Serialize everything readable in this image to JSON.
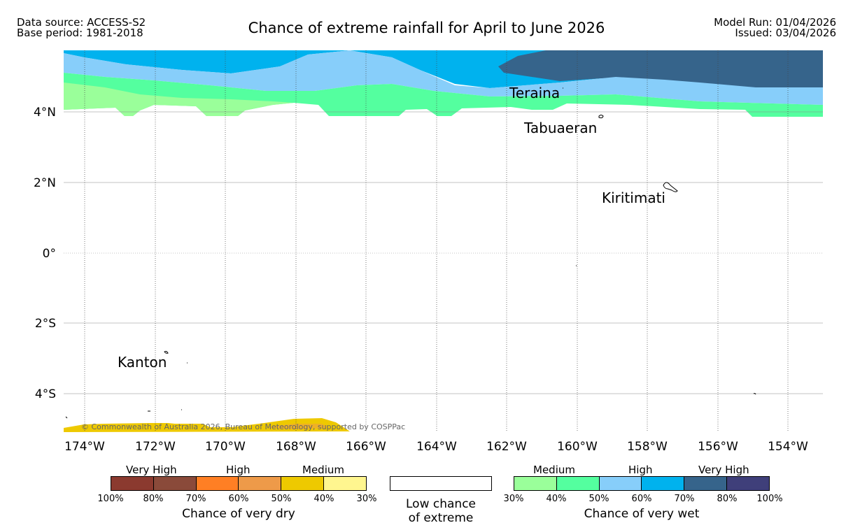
{
  "header": {
    "data_source": "Data source: ACCESS-S2",
    "base_period": "Base period: 1981-2018",
    "title": "Chance of extreme rainfall for April to June 2026",
    "model_run": "Model Run: 01/04/2026",
    "issued": "Issued: 03/04/2026"
  },
  "map": {
    "lat_labels": [
      "4°N",
      "2°N",
      "0°",
      "2°S",
      "4°S"
    ],
    "lon_labels": [
      "174°W",
      "172°W",
      "170°W",
      "168°W",
      "166°W",
      "164°W",
      "162°W",
      "160°W",
      "158°W",
      "156°W",
      "154°W"
    ],
    "places": [
      "Teraina",
      "Tabuaeran",
      "Kiritimati",
      "Kanton"
    ],
    "copyright": "© Commonwealth of Australia 2026, Bureau of Meteorology, supported by COSPPac"
  },
  "legend": {
    "dry": {
      "groups": [
        "Very High",
        "High",
        "Medium"
      ],
      "ticks": [
        "100%",
        "80%",
        "70%",
        "60%",
        "50%",
        "40%",
        "30%"
      ],
      "colors": [
        "#8b3a2f",
        "#8a4a3a",
        "#ff7f24",
        "#ee9a49",
        "#eec900",
        "#fff68f"
      ],
      "caption": "Chance of very dry"
    },
    "neutral": {
      "line1": "Low chance",
      "line2": "of extreme"
    },
    "wet": {
      "groups": [
        "Medium",
        "High",
        "Very High"
      ],
      "ticks": [
        "30%",
        "40%",
        "50%",
        "60%",
        "70%",
        "80%",
        "100%"
      ],
      "colors": [
        "#9aff9a",
        "#54ff9f",
        "#87cefa",
        "#00b2ee",
        "#36648b",
        "#3f3f7a"
      ],
      "caption": "Chance of very wet"
    }
  }
}
